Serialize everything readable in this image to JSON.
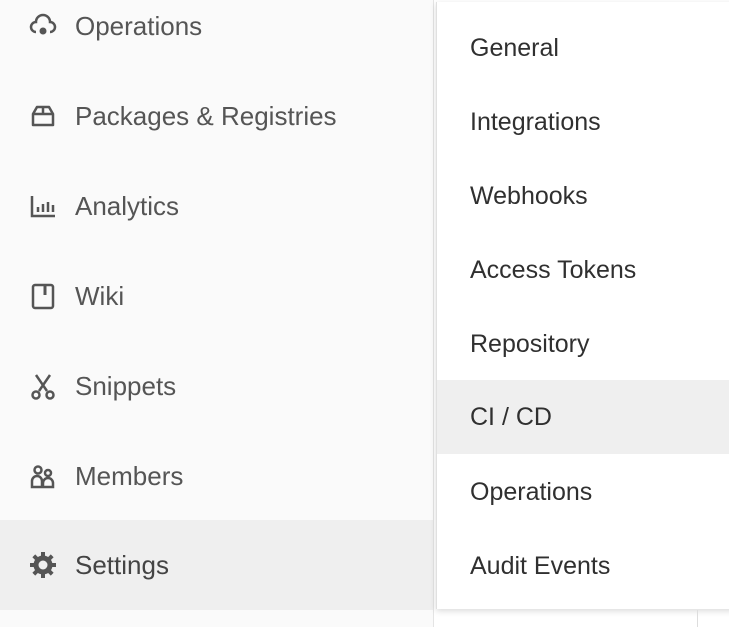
{
  "sidebar": {
    "items": [
      {
        "label": "Operations",
        "icon": "cloud-gear-icon"
      },
      {
        "label": "Packages & Registries",
        "icon": "package-icon"
      },
      {
        "label": "Analytics",
        "icon": "chart-icon"
      },
      {
        "label": "Wiki",
        "icon": "book-icon"
      },
      {
        "label": "Snippets",
        "icon": "scissors-icon"
      },
      {
        "label": "Members",
        "icon": "users-icon"
      },
      {
        "label": "Settings",
        "icon": "gear-icon",
        "active": true
      }
    ]
  },
  "flyout": {
    "items": [
      {
        "label": "General"
      },
      {
        "label": "Integrations"
      },
      {
        "label": "Webhooks"
      },
      {
        "label": "Access Tokens"
      },
      {
        "label": "Repository"
      },
      {
        "label": "CI / CD",
        "hover": true
      },
      {
        "label": "Operations"
      },
      {
        "label": "Audit Events"
      }
    ]
  },
  "colors": {
    "sidebar_bg": "#fafafa",
    "active_bg": "#efefef",
    "text": "#555555",
    "flyout_text": "#303030"
  }
}
